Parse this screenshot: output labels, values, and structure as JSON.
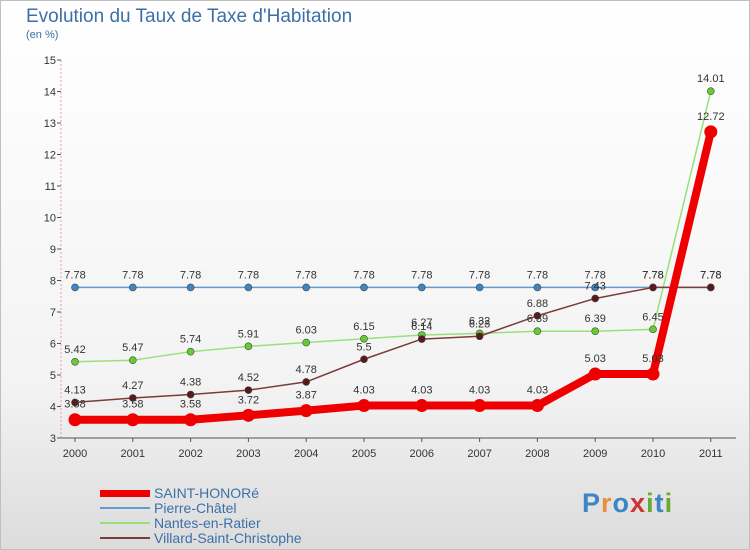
{
  "chart_data": {
    "type": "line",
    "title": "Evolution du Taux de Taxe d'Habitation",
    "unit_label": "(en %)",
    "xlabel": "",
    "ylabel": "",
    "x": [
      "2000",
      "2001",
      "2002",
      "2003",
      "2004",
      "2005",
      "2006",
      "2007",
      "2008",
      "2009",
      "2010",
      "2011"
    ],
    "ylim": [
      3,
      15
    ],
    "yticks": [
      3,
      4,
      5,
      6,
      7,
      8,
      9,
      10,
      11,
      12,
      13,
      14,
      15
    ],
    "grid": false,
    "legend_position": "bottom-left",
    "series": [
      {
        "name": "Pierre-Châtel",
        "color": "#6699cc",
        "marker": "#3d85c6",
        "values": [
          7.78,
          7.78,
          7.78,
          7.78,
          7.78,
          7.78,
          7.78,
          7.78,
          7.78,
          7.78,
          7.78,
          7.78
        ],
        "labels": [
          "7.78",
          "7.78",
          "7.78",
          "7.78",
          "7.78",
          "7.78",
          "7.78",
          "7.78",
          "7.78",
          "7.78",
          "7.78",
          "7.78"
        ]
      },
      {
        "name": "Nantes-en-Ratier",
        "color": "#99e07a",
        "marker": "#66cc33",
        "values": [
          5.42,
          5.47,
          5.74,
          5.91,
          6.03,
          6.15,
          6.27,
          6.32,
          6.39,
          6.39,
          6.45,
          14.01
        ],
        "labels": [
          "5.42",
          "5.47",
          "5.74",
          "5.91",
          "6.03",
          "6.15",
          "6.27",
          "6.32",
          "6.39",
          "6.39",
          "6.45",
          "14.01"
        ]
      },
      {
        "name": "Villard-Saint-Christophe",
        "color": "#7a3c3c",
        "marker": "#5a1a1a",
        "values": [
          4.13,
          4.27,
          4.38,
          4.52,
          4.78,
          5.5,
          6.14,
          6.23,
          6.88,
          7.43,
          7.78,
          7.78
        ],
        "labels": [
          "4.13",
          "4.27",
          "4.38",
          "4.52",
          "4.78",
          "5.5",
          "6.14",
          "6.23",
          "6.88",
          "7.43",
          "7.78",
          "7.78"
        ]
      },
      {
        "name": "SAINT-HONORé",
        "color": "#ee0000",
        "marker": "#ee0000",
        "values": [
          3.58,
          3.58,
          3.58,
          3.72,
          3.87,
          4.03,
          4.03,
          4.03,
          4.03,
          5.03,
          5.03,
          12.72
        ],
        "labels": [
          "3.58",
          "3.58",
          "3.58",
          "3.72",
          "3.87",
          "4.03",
          "4.03",
          "4.03",
          "4.03",
          "5.03",
          "5.03",
          "12.72"
        ]
      }
    ]
  },
  "legend": [
    {
      "label": "SAINT-HONORé",
      "color": "#ee0000"
    },
    {
      "label": "Pierre-Châtel",
      "color": "#6699cc"
    },
    {
      "label": "Nantes-en-Ratier",
      "color": "#99e07a"
    },
    {
      "label": "Villard-Saint-Christophe",
      "color": "#7a3c3c"
    }
  ],
  "logo": {
    "text": "Proxiti",
    "colors": [
      "#3d85c6",
      "#e69138",
      "#3d85c6",
      "#cc3333",
      "#66aa33",
      "#3d85c6",
      "#66aa33"
    ]
  }
}
